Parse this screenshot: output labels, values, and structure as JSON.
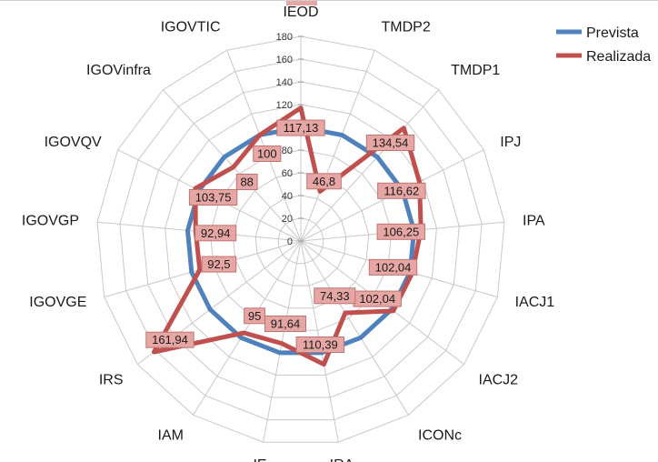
{
  "chart_data": {
    "type": "radar",
    "title": "",
    "axes": [
      "IEOD",
      "TMDP2",
      "TMDP1",
      "IPJ",
      "IPA",
      "IACJ1",
      "IACJ2",
      "ICONc",
      "IRA",
      "IE",
      "IAM",
      "IRS",
      "IGOVGE",
      "IGOVGP",
      "IGOVQV",
      "IGOVinfra",
      "IGOVTIC"
    ],
    "r_ticks": [
      0,
      20,
      40,
      60,
      80,
      100,
      120,
      140,
      160,
      180
    ],
    "rlim": [
      0,
      180
    ],
    "grid": true,
    "legend_position": "top-right",
    "series": [
      {
        "name": "Prevista",
        "color": "#4F81BD",
        "values": [
          100,
          100,
          100,
          100,
          100,
          100,
          100,
          100,
          100,
          100,
          100,
          100,
          100,
          100,
          100,
          100,
          100
        ]
      },
      {
        "name": "Realizada",
        "color": "#C0504D",
        "values": [
          117.13,
          46.8,
          134.54,
          116.62,
          106.25,
          102.04,
          102.04,
          74.33,
          110.39,
          91.64,
          95,
          161.94,
          92.5,
          92.94,
          103.75,
          88,
          100
        ],
        "labels": [
          "117,13",
          "46,8",
          "134,54",
          "116,62",
          "106,25",
          "102,04",
          "102,04",
          "74,33",
          "110,39",
          "91,64",
          "95",
          "161,94",
          "92,5",
          "92,94",
          "103,75",
          "88",
          "100"
        ]
      }
    ]
  },
  "label_style": {
    "box_fill": "#E6A6A4",
    "box_stroke": "#C07472"
  }
}
